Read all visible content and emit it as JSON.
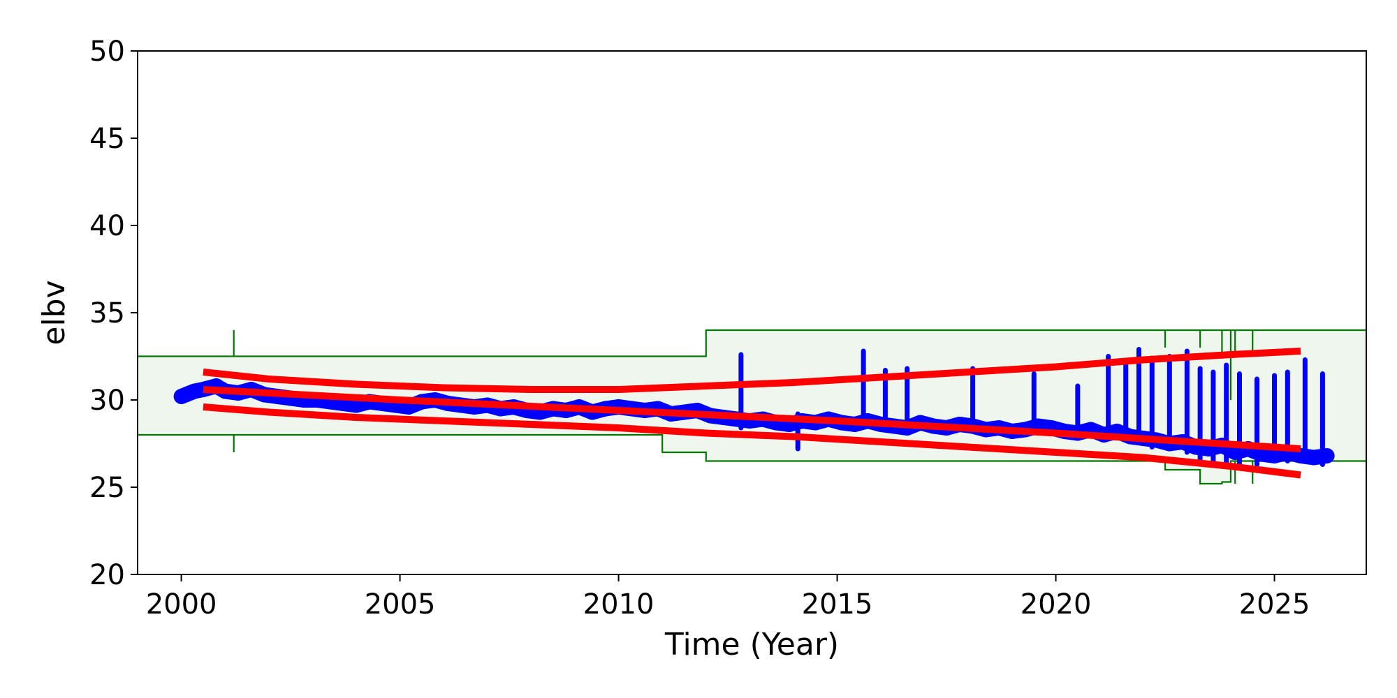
{
  "chart_data": {
    "type": "scatter",
    "title": "",
    "xlabel": "Time (Year)",
    "ylabel": "elbv",
    "xlim": [
      1999.0,
      2027.1
    ],
    "ylim": [
      20,
      50
    ],
    "xticks": [
      2000,
      2005,
      2010,
      2015,
      2020,
      2025
    ],
    "yticks": [
      20,
      25,
      30,
      35,
      40,
      45,
      50
    ],
    "grid": false,
    "legend": "none",
    "colors": {
      "points": "#0000ff",
      "trend": "#ff0000",
      "limits_line": "#007700",
      "limits_fill": "#eef6ee"
    },
    "series": [
      {
        "kind": "scatter",
        "x": [
          2000.0,
          2000.3,
          2000.5,
          2000.8,
          2001.0,
          2001.3,
          2001.6,
          2001.9,
          2002.2,
          2002.5,
          2002.8,
          2003.1,
          2003.4,
          2003.7,
          2004.0,
          2004.3,
          2004.6,
          2004.9,
          2005.2,
          2005.5,
          2005.8,
          2006.1,
          2006.4,
          2006.7,
          2007.0,
          2007.3,
          2007.6,
          2007.9,
          2008.2,
          2008.5,
          2008.8,
          2009.1,
          2009.4,
          2009.7,
          2010.0,
          2010.3,
          2010.6,
          2010.9,
          2011.2,
          2011.5,
          2011.8,
          2012.1,
          2012.4,
          2012.7,
          2013.0,
          2013.3,
          2013.6,
          2013.9,
          2014.2,
          2014.5,
          2014.8,
          2015.1,
          2015.4,
          2015.7,
          2016.0,
          2016.3,
          2016.6,
          2016.9,
          2017.2,
          2017.5,
          2017.8,
          2018.1,
          2018.4,
          2018.7,
          2019.0,
          2019.3,
          2019.6,
          2019.9,
          2020.2,
          2020.5,
          2020.8,
          2021.1,
          2021.4,
          2021.7,
          2022.0,
          2022.3,
          2022.6,
          2022.9,
          2023.2,
          2023.5,
          2023.8,
          2024.1,
          2024.4,
          2024.7,
          2025.0,
          2025.3,
          2025.6,
          2025.9,
          2026.2
        ],
        "y": [
          30.2,
          30.5,
          30.6,
          30.8,
          30.5,
          30.4,
          30.6,
          30.3,
          30.2,
          30.1,
          30.0,
          30.0,
          29.9,
          29.8,
          29.7,
          29.9,
          29.8,
          29.7,
          29.6,
          29.9,
          30.0,
          29.8,
          29.7,
          29.6,
          29.7,
          29.5,
          29.6,
          29.4,
          29.3,
          29.5,
          29.4,
          29.6,
          29.3,
          29.5,
          29.6,
          29.5,
          29.4,
          29.5,
          29.2,
          29.3,
          29.4,
          29.1,
          29.0,
          28.9,
          28.8,
          28.9,
          28.7,
          28.6,
          28.8,
          28.7,
          28.9,
          28.7,
          28.6,
          28.8,
          28.6,
          28.5,
          28.4,
          28.7,
          28.5,
          28.4,
          28.6,
          28.5,
          28.3,
          28.4,
          28.2,
          28.3,
          28.5,
          28.4,
          28.2,
          28.1,
          28.3,
          28.0,
          28.2,
          27.9,
          27.8,
          27.7,
          27.5,
          27.6,
          27.3,
          27.2,
          27.4,
          27.0,
          27.2,
          26.9,
          26.8,
          27.0,
          26.8,
          26.7,
          26.8
        ]
      },
      {
        "kind": "spikes",
        "x": [
          2012.8,
          2014.1,
          2015.6,
          2016.1,
          2016.6,
          2018.1,
          2019.5,
          2020.5,
          2021.2,
          2021.6,
          2021.9,
          2022.2,
          2022.6,
          2023.0,
          2023.3,
          2023.6,
          2023.9,
          2024.2,
          2024.6,
          2025.0,
          2025.3,
          2025.7,
          2026.1
        ],
        "y_low": [
          28.4,
          27.2,
          28.6,
          28.4,
          28.5,
          28.5,
          28.4,
          28.3,
          28.2,
          27.8,
          27.6,
          27.3,
          27.2,
          27.0,
          26.5,
          26.3,
          26.4,
          26.2,
          26.3,
          26.5,
          26.5,
          26.6,
          26.3
        ],
        "y_high": [
          32.6,
          29.2,
          32.8,
          31.7,
          31.8,
          31.8,
          31.5,
          30.8,
          32.5,
          32.2,
          32.9,
          32.4,
          32.5,
          32.8,
          31.8,
          31.6,
          32.0,
          31.5,
          31.2,
          31.4,
          31.6,
          32.3,
          31.5
        ]
      },
      {
        "kind": "line",
        "name": "",
        "x": [
          2000.5,
          2002,
          2004,
          2006,
          2008,
          2010,
          2012,
          2014,
          2016,
          2018,
          2020,
          2022,
          2024,
          2025.6
        ],
        "y": [
          31.6,
          31.2,
          30.9,
          30.7,
          30.6,
          30.6,
          30.8,
          31.0,
          31.3,
          31.6,
          31.9,
          32.3,
          32.6,
          32.8
        ]
      },
      {
        "kind": "line",
        "name": "",
        "x": [
          2000.5,
          2005,
          2010,
          2015,
          2020,
          2025.6
        ],
        "y": [
          30.6,
          30.0,
          29.4,
          28.8,
          28.1,
          27.2
        ]
      },
      {
        "kind": "line",
        "name": "",
        "x": [
          2000.5,
          2002,
          2004,
          2006,
          2008,
          2010,
          2012,
          2014,
          2016,
          2018,
          2020,
          2022,
          2024,
          2025.6
        ],
        "y": [
          29.6,
          29.3,
          29.0,
          28.8,
          28.6,
          28.4,
          28.1,
          27.9,
          27.6,
          27.3,
          27.0,
          26.7,
          26.2,
          25.7
        ]
      }
    ],
    "limits": {
      "upper": {
        "x": [
          1999.0,
          2012.0,
          2012.0,
          2027.1
        ],
        "y": [
          32.5,
          32.5,
          34.0,
          34.0
        ]
      },
      "lower": {
        "x": [
          1999.0,
          2011.0,
          2011.0,
          2012.0,
          2012.0,
          2022.5,
          2022.5,
          2023.3,
          2023.3,
          2023.8,
          2023.8,
          2024.0,
          2024.0,
          2027.1
        ],
        "y": [
          28.0,
          28.0,
          27.0,
          27.0,
          26.5,
          26.5,
          26.0,
          26.0,
          25.2,
          25.2,
          25.3,
          25.3,
          26.5,
          26.5
        ]
      },
      "markers": [
        {
          "x": 2001.2,
          "y0": 32.5,
          "y1": 34.0
        },
        {
          "x": 2001.2,
          "y0": 27.0,
          "y1": 28.0
        },
        {
          "x": 2022.5,
          "y0": 33.0,
          "y1": 34.0
        },
        {
          "x": 2023.3,
          "y0": 33.0,
          "y1": 34.0
        },
        {
          "x": 2023.8,
          "y0": 32.5,
          "y1": 34.0
        },
        {
          "x": 2024.0,
          "y0": 30.0,
          "y1": 34.0
        },
        {
          "x": 2024.1,
          "y0": 32.5,
          "y1": 34.0
        },
        {
          "x": 2024.5,
          "y0": 32.5,
          "y1": 34.0
        },
        {
          "x": 2024.1,
          "y0": 25.2,
          "y1": 26.5
        },
        {
          "x": 2024.5,
          "y0": 25.2,
          "y1": 26.5
        }
      ]
    }
  }
}
